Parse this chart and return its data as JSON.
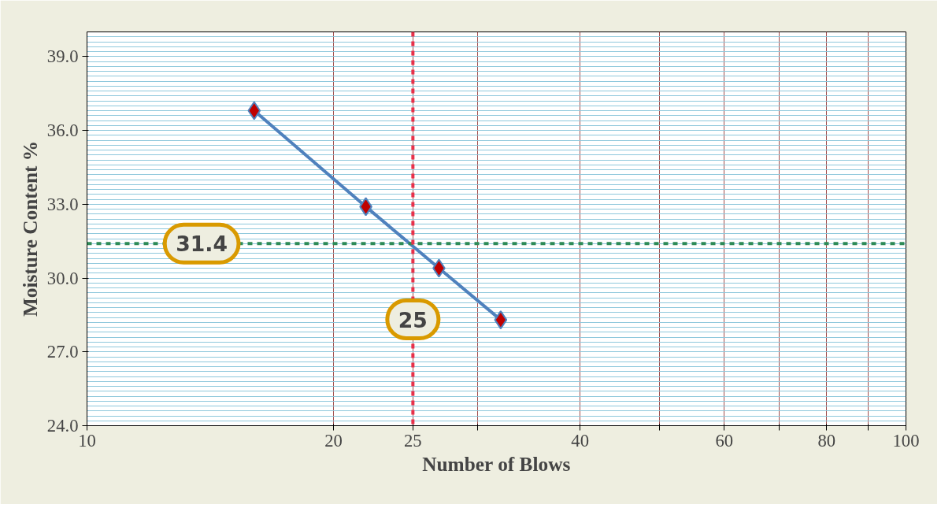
{
  "chart_data": {
    "type": "line",
    "xlabel": "Number of Blows",
    "ylabel": "Moisture Content %",
    "x": [
      16.0,
      21.9,
      26.9,
      32.0
    ],
    "series": [
      {
        "color": "#4f81bd",
        "values": [
          36.8,
          32.9,
          30.4,
          28.3
        ]
      }
    ],
    "marker": "diamond",
    "line_style": "solid",
    "log": "x",
    "grid": true,
    "xlim": [
      10,
      100
    ],
    "xticks": [
      10,
      20,
      25,
      {
        "value": 30,
        "label": null
      },
      40,
      {
        "value": 50,
        "label": null
      },
      60,
      {
        "value": 70,
        "label": null
      },
      80,
      {
        "value": 90,
        "label": null
      },
      100
    ],
    "ylim": [
      24,
      40
    ],
    "yticks": [
      {
        "value": 24,
        "label": "24.0"
      },
      {
        "value": 27,
        "label": "27.0"
      },
      {
        "value": 30,
        "label": "30.0"
      },
      {
        "value": 33,
        "label": "33.0"
      },
      {
        "value": 36,
        "label": "36.0"
      },
      {
        "value": 39,
        "label": "39.0"
      }
    ],
    "ref_lines": [
      {
        "axis": "y",
        "value": 31.4,
        "label": "31.4",
        "color": "#2e8b57",
        "line_style": "dashed"
      },
      {
        "axis": "x",
        "value": 25,
        "label": "25",
        "color": "#e8304a",
        "line_style": "dashed"
      }
    ]
  }
}
